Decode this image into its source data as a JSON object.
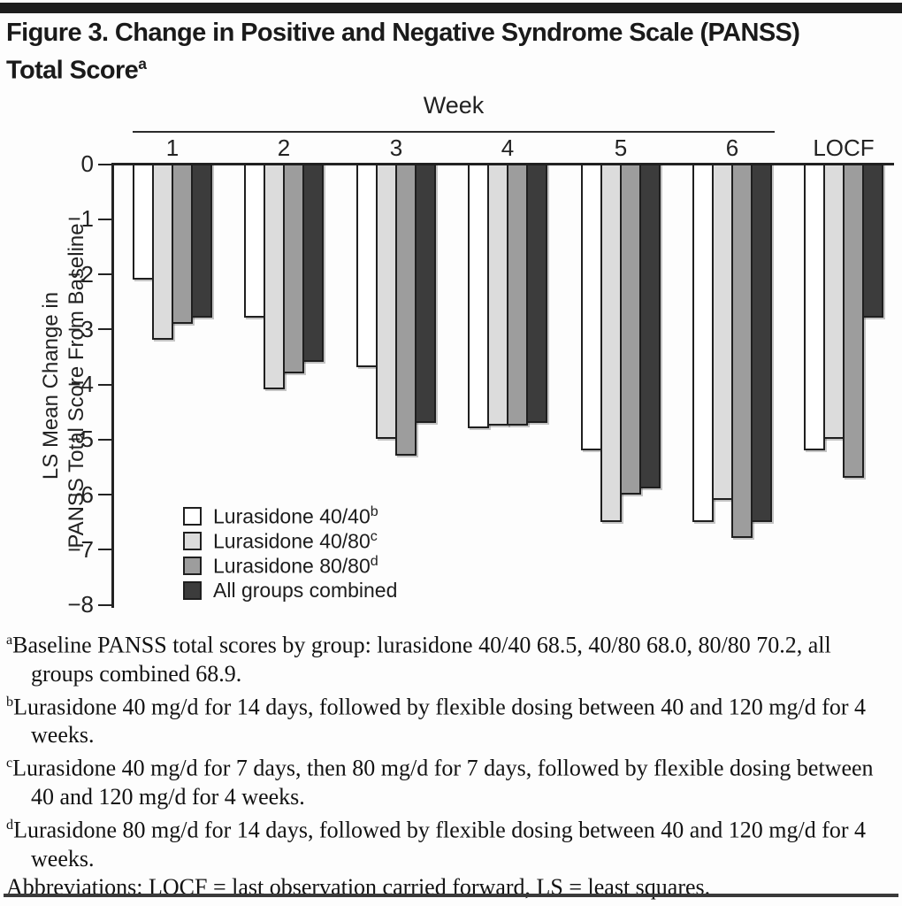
{
  "figure": {
    "title_line1": "Figure 3. Change in Positive and Negative Syndrome Scale (PANSS)",
    "title_line2": "Total Score",
    "title_sup": "a"
  },
  "chart_data": {
    "type": "bar",
    "group_axis_title": "Week",
    "categories": [
      "1",
      "2",
      "3",
      "4",
      "5",
      "6",
      "LOCF"
    ],
    "series": [
      {
        "name": "Lurasidone 40/40",
        "sup": "b",
        "color": "#ffffff",
        "values": [
          -2.1,
          -2.8,
          -3.7,
          -4.8,
          -5.2,
          -6.5,
          -5.2
        ]
      },
      {
        "name": "Lurasidone 40/80",
        "sup": "c",
        "color": "#dcdcdc",
        "values": [
          -3.2,
          -4.1,
          -5.0,
          -4.75,
          -6.5,
          -6.1,
          -5.0
        ]
      },
      {
        "name": "Lurasidone 80/80",
        "sup": "d",
        "color": "#9d9d9d",
        "values": [
          -2.9,
          -3.8,
          -5.3,
          -4.75,
          -6.0,
          -6.8,
          -5.7
        ]
      },
      {
        "name": "All groups combined",
        "sup": "",
        "color": "#3c3c3c",
        "values": [
          -2.8,
          -3.6,
          -4.7,
          -4.7,
          -5.9,
          -6.5,
          -2.8
        ]
      }
    ],
    "ylabel_line1": "LS Mean Change in",
    "ylabel_line2": "PANSS Total Score From Baseline",
    "ytick_values": [
      0,
      -1,
      -2,
      -3,
      -4,
      -5,
      -6,
      -7,
      -8
    ],
    "ytick_labels": [
      "0",
      "−1",
      "−2",
      "−3",
      "−4",
      "−5",
      "−6",
      "−7",
      "−8"
    ],
    "ylim": [
      0,
      -8
    ],
    "grid": false,
    "legend_position": "bottom-left-inside"
  },
  "footnotes": [
    {
      "sup": "a",
      "text": "Baseline PANSS total scores by group: lurasidone 40/40 68.5, 40/80 68.0, 80/80 70.2, all groups combined 68.9."
    },
    {
      "sup": "b",
      "text": "Lurasidone 40 mg/d for 14 days, followed by flexible dosing between 40 and 120 mg/d for 4 weeks."
    },
    {
      "sup": "c",
      "text": "Lurasidone 40 mg/d for 7 days, then 80 mg/d for 7 days, followed by flexible dosing between 40 and 120 mg/d for 4 weeks."
    },
    {
      "sup": "d",
      "text": "Lurasidone 80 mg/d for 14 days, followed by flexible dosing between 40 and 120 mg/d for 4 weeks."
    },
    {
      "sup": "",
      "text": "Abbreviations: LOCF = last observation carried forward, LS = least squares."
    }
  ],
  "colors": {
    "bar_border": "#1f1f1f",
    "axis": "#232323",
    "rule": "#1d1d1d",
    "light_gray": "#dcdcdc",
    "mid_gray": "#9d9d9d",
    "dark_gray": "#3c3c3c"
  }
}
